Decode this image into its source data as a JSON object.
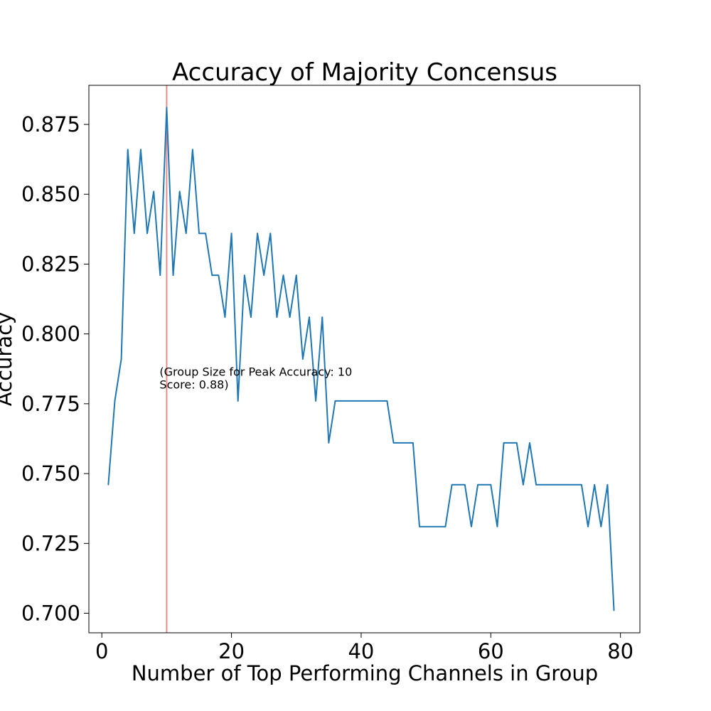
{
  "chart_data": {
    "type": "line",
    "title": "Accuracy of Majority Concensus",
    "xlabel": "Number of Top Performing Channels in Group",
    "ylabel": "Accuracy",
    "xlim": [
      -2,
      83
    ],
    "ylim": [
      0.693,
      0.889
    ],
    "grid": false,
    "x_ticks": [
      {
        "value": 0,
        "label": "0"
      },
      {
        "value": 20,
        "label": "20"
      },
      {
        "value": 40,
        "label": "40"
      },
      {
        "value": 60,
        "label": "60"
      },
      {
        "value": 80,
        "label": "80"
      }
    ],
    "y_ticks": [
      {
        "value": 0.7,
        "label": "0.700"
      },
      {
        "value": 0.725,
        "label": "0.725"
      },
      {
        "value": 0.75,
        "label": "0.750"
      },
      {
        "value": 0.775,
        "label": "0.775"
      },
      {
        "value": 0.8,
        "label": "0.800"
      },
      {
        "value": 0.825,
        "label": "0.825"
      },
      {
        "value": 0.85,
        "label": "0.850"
      },
      {
        "value": 0.875,
        "label": "0.875"
      }
    ],
    "series": [
      {
        "color": "#1f77b4",
        "x": [
          1,
          2,
          3,
          4,
          5,
          6,
          7,
          8,
          9,
          10,
          11,
          12,
          13,
          14,
          15,
          16,
          17,
          18,
          19,
          20,
          21,
          22,
          23,
          24,
          25,
          26,
          27,
          28,
          29,
          30,
          31,
          32,
          33,
          34,
          35,
          36,
          37,
          38,
          39,
          40,
          41,
          42,
          43,
          44,
          45,
          46,
          47,
          48,
          49,
          50,
          51,
          52,
          53,
          54,
          55,
          56,
          57,
          58,
          59,
          60,
          61,
          62,
          63,
          64,
          65,
          66,
          67,
          68,
          69,
          70,
          71,
          72,
          73,
          74,
          75,
          76,
          77,
          78,
          79
        ],
        "y": [
          0.746,
          0.776,
          0.791,
          0.866,
          0.836,
          0.866,
          0.836,
          0.851,
          0.821,
          0.881,
          0.821,
          0.851,
          0.836,
          0.866,
          0.836,
          0.836,
          0.821,
          0.821,
          0.806,
          0.836,
          0.776,
          0.821,
          0.806,
          0.836,
          0.821,
          0.836,
          0.806,
          0.821,
          0.806,
          0.821,
          0.791,
          0.806,
          0.776,
          0.806,
          0.761,
          0.776,
          0.776,
          0.776,
          0.776,
          0.776,
          0.776,
          0.776,
          0.776,
          0.776,
          0.761,
          0.761,
          0.761,
          0.761,
          0.731,
          0.731,
          0.731,
          0.731,
          0.731,
          0.746,
          0.746,
          0.746,
          0.731,
          0.746,
          0.746,
          0.746,
          0.731,
          0.761,
          0.761,
          0.761,
          0.746,
          0.761,
          0.746,
          0.746,
          0.746,
          0.746,
          0.746,
          0.746,
          0.746,
          0.746,
          0.731,
          0.746,
          0.731,
          0.746,
          0.701
        ]
      }
    ],
    "vline": {
      "x": 10,
      "color": "#f08080"
    },
    "annotation": {
      "x": 10,
      "y": 0.785,
      "lines": [
        "(Group Size for Peak Accuracy: 10",
        "Score: 0.88)"
      ]
    }
  }
}
